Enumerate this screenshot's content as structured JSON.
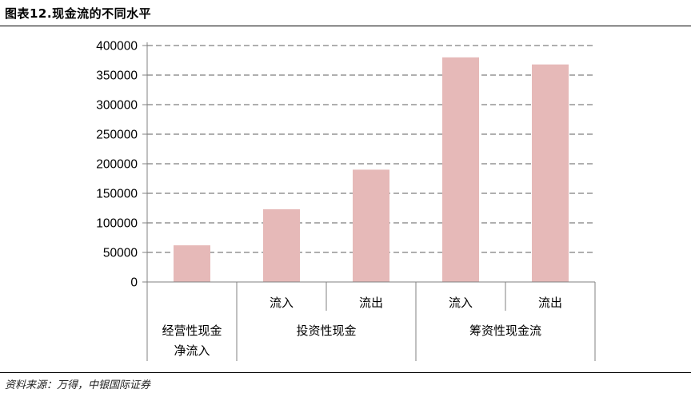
{
  "header": {
    "title": "图表12.现金流的不同水平"
  },
  "footer": {
    "source": "资料来源：万得，中银国际证券"
  },
  "chart_data": {
    "type": "bar",
    "title": "图表12.现金流的不同水平",
    "xlabel": "",
    "ylabel": "",
    "ylim": [
      0,
      400000
    ],
    "yticks": [
      0,
      50000,
      100000,
      150000,
      200000,
      250000,
      300000,
      350000,
      400000
    ],
    "grid": true,
    "bar_color": "#e6b9b8",
    "categories": [
      "经营性现金净流入",
      "流入",
      "流出",
      "流入",
      "流出"
    ],
    "values": [
      62000,
      123000,
      190000,
      380000,
      368000
    ],
    "category_groups": [
      {
        "label_lines": [
          "经营性现金",
          "净流入"
        ],
        "span": [
          0,
          0
        ]
      },
      {
        "label_lines": [
          "投资性现金"
        ],
        "span": [
          1,
          2
        ]
      },
      {
        "label_lines": [
          "筹资性现金流"
        ],
        "span": [
          3,
          4
        ]
      }
    ],
    "sub_labels": [
      "",
      "流入",
      "流出",
      "流入",
      "流出"
    ]
  }
}
